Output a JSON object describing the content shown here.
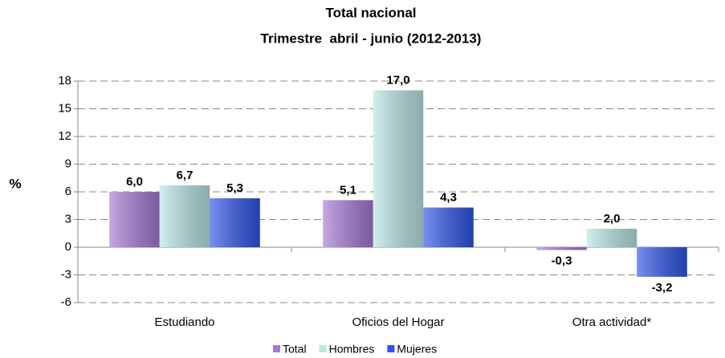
{
  "chart_data": {
    "type": "bar",
    "title": "Total nacional",
    "subtitle": "Trimestre  abril - junio (2012-2013)",
    "y_label": "%",
    "categories": [
      "Estudiando",
      "Oficios del Hogar",
      "Otra actividad*"
    ],
    "series": [
      {
        "name": "Total",
        "color": "#a77ad6",
        "values": [
          6.0,
          5.1,
          -0.3
        ],
        "value_labels": [
          "6,0",
          "5,1",
          "-0,3"
        ]
      },
      {
        "name": "Hombres",
        "color": "#b8e6e3",
        "values": [
          6.7,
          17.0,
          2.0
        ],
        "value_labels": [
          "6,7",
          "17,0",
          "2,0"
        ]
      },
      {
        "name": "Mujeres",
        "color": "#2f55e8",
        "values": [
          5.3,
          4.3,
          -3.2
        ],
        "value_labels": [
          "5,3",
          "4,3",
          "-3,2"
        ]
      }
    ],
    "ylim": [
      -6,
      18
    ],
    "yticks": [
      -6,
      -3,
      0,
      3,
      6,
      9,
      12,
      15,
      18
    ],
    "grid": true,
    "legend": "bottom"
  }
}
